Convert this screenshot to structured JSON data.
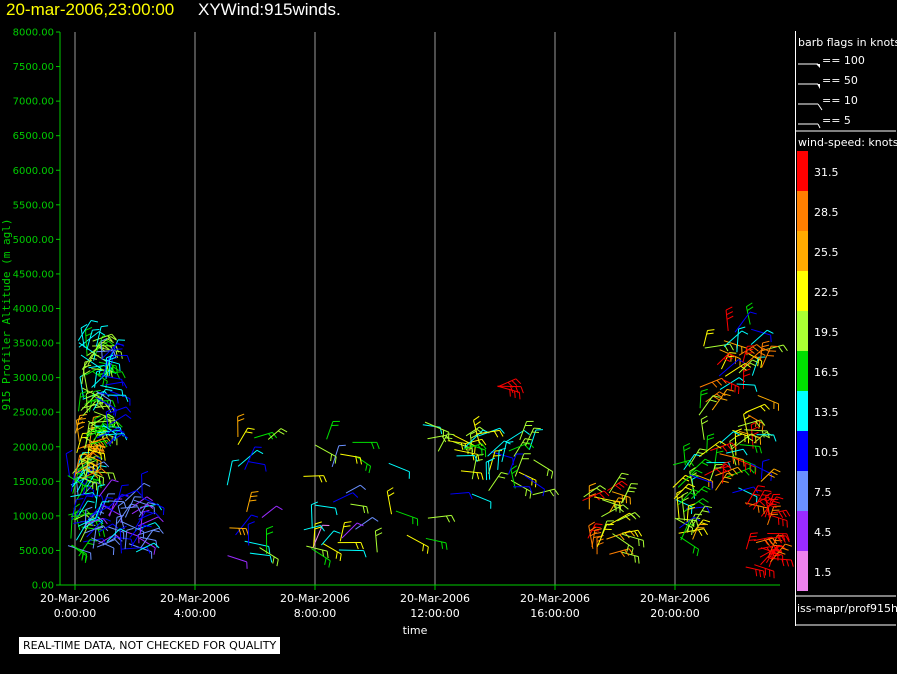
{
  "header": {
    "date_time": "20-mar-2006,23:00:00",
    "title": "XYWind:915winds."
  },
  "chart_data": {
    "type": "wind-barb time-height",
    "xlabel": "time",
    "ylabel": "915 Profiler Altitude (m agl)",
    "xlim_hours": [
      -0.5,
      23.5
    ],
    "ylim": [
      0,
      8000
    ],
    "y_ticks": [
      "0.00",
      "500.00",
      "1000.00",
      "1500.00",
      "2000.00",
      "2500.00",
      "3000.00",
      "3500.00",
      "4000.00",
      "4500.00",
      "5000.00",
      "5500.00",
      "6000.00",
      "6500.00",
      "7000.00",
      "7500.00",
      "8000.00"
    ],
    "x_ticks": [
      {
        "hour": 0,
        "date": "20-Mar-2006",
        "time": "0:00:00"
      },
      {
        "hour": 4,
        "date": "20-Mar-2006",
        "time": "4:00:00"
      },
      {
        "hour": 8,
        "date": "20-Mar-2006",
        "time": "8:00:00"
      },
      {
        "hour": 12,
        "date": "20-Mar-2006",
        "time": "12:00:00"
      },
      {
        "hour": 16,
        "date": "20-Mar-2006",
        "time": "16:00:00"
      },
      {
        "hour": 20,
        "date": "20-Mar-2006",
        "time": "20:00:00"
      }
    ],
    "grid": "vertical lines at x ticks",
    "barb_legend": {
      "title": "barb flags in knots",
      "entries": [
        "== 100",
        "== 50",
        "== 10",
        "== 5"
      ]
    },
    "color_scale": {
      "title": "wind-speed: knots",
      "levels": [
        {
          "label": "31.5",
          "color": "#ff0000"
        },
        {
          "label": "28.5",
          "color": "#ff7f00"
        },
        {
          "label": "25.5",
          "color": "#ffaa00"
        },
        {
          "label": "22.5",
          "color": "#ffff00"
        },
        {
          "label": "19.5",
          "color": "#aaff33"
        },
        {
          "label": "16.5",
          "color": "#00e000"
        },
        {
          "label": "13.5",
          "color": "#00ffff"
        },
        {
          "label": "10.5",
          "color": "#0000ff"
        },
        {
          "label": "7.5",
          "color": "#6a90ff"
        },
        {
          "label": "4.5",
          "color": "#9a2bff"
        },
        {
          "label": "1.5",
          "color": "#ee82ee"
        }
      ]
    },
    "clusters": [
      {
        "hour_start": -0.3,
        "hour_end": 0.4,
        "alt_min": 400,
        "alt_max": 1700,
        "speed_min": 7,
        "speed_max": 20,
        "count": 48
      },
      {
        "hour_start": 0.0,
        "hour_end": 0.5,
        "alt_min": 1500,
        "alt_max": 2200,
        "speed_min": 19,
        "speed_max": 28,
        "count": 26
      },
      {
        "hour_start": 0.1,
        "hour_end": 0.8,
        "alt_min": 2000,
        "alt_max": 3600,
        "speed_min": 13,
        "speed_max": 21,
        "count": 55
      },
      {
        "hour_start": 0.7,
        "hour_end": 1.2,
        "alt_min": 2000,
        "alt_max": 3500,
        "speed_min": 8,
        "speed_max": 14,
        "count": 30
      },
      {
        "hour_start": 0.4,
        "hour_end": 2.3,
        "alt_min": 450,
        "alt_max": 1300,
        "speed_min": 4,
        "speed_max": 13,
        "count": 55
      },
      {
        "hour_start": 5.0,
        "hour_end": 6.5,
        "alt_min": 300,
        "alt_max": 2200,
        "speed_min": 3,
        "speed_max": 26,
        "count": 18
      },
      {
        "hour_start": 7.6,
        "hour_end": 9.5,
        "alt_min": 500,
        "alt_max": 2200,
        "speed_min": 2,
        "speed_max": 24,
        "count": 24
      },
      {
        "hour_start": 9.8,
        "hour_end": 11.8,
        "alt_min": 400,
        "alt_max": 2700,
        "speed_min": 5,
        "speed_max": 24,
        "count": 10
      },
      {
        "hour_start": 12.0,
        "hour_end": 13.5,
        "alt_min": 1900,
        "alt_max": 2200,
        "speed_min": 17,
        "speed_max": 23,
        "count": 8
      },
      {
        "hour_start": 12.5,
        "hour_end": 15.3,
        "alt_min": 1300,
        "alt_max": 2200,
        "speed_min": 9,
        "speed_max": 23,
        "count": 34
      },
      {
        "hour_start": 14.0,
        "hour_end": 14.7,
        "alt_min": 2700,
        "alt_max": 2900,
        "speed_min": 29,
        "speed_max": 33,
        "count": 3
      },
      {
        "hour_start": 16.9,
        "hour_end": 18.3,
        "alt_min": 400,
        "alt_max": 1400,
        "speed_min": 18,
        "speed_max": 31,
        "count": 26
      },
      {
        "hour_start": 19.9,
        "hour_end": 20.7,
        "alt_min": 600,
        "alt_max": 1800,
        "speed_min": 9,
        "speed_max": 25,
        "count": 30
      },
      {
        "hour_start": 20.8,
        "hour_end": 22.9,
        "alt_min": 1300,
        "alt_max": 3800,
        "speed_min": 10,
        "speed_max": 33,
        "count": 70
      },
      {
        "hour_start": 22.3,
        "hour_end": 23.2,
        "alt_min": 250,
        "alt_max": 1200,
        "speed_min": 29,
        "speed_max": 33,
        "count": 26
      }
    ]
  },
  "source_label": "iss-mapr/prof915h",
  "quality_note": "REAL-TIME DATA, NOT CHECKED FOR QUALITY"
}
